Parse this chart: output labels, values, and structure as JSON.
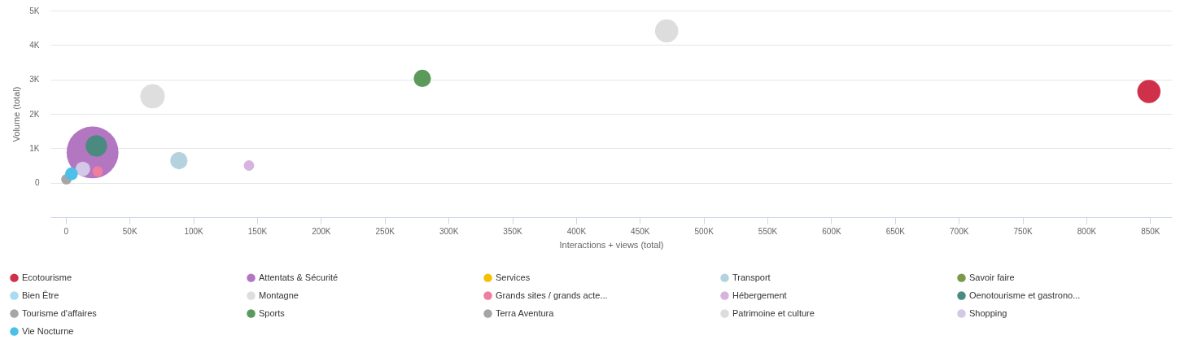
{
  "chart_data": {
    "type": "bubble",
    "xlabel": "Interactions + views (total)",
    "ylabel": "Volume (total)",
    "xlim": [
      -12000,
      867000
    ],
    "ylim": [
      -1000,
      5000
    ],
    "xticks": [
      0,
      {
        "value": 50000,
        "label": "50K"
      },
      {
        "value": 100000,
        "label": "100K"
      },
      {
        "value": 150000,
        "label": "150K"
      },
      {
        "value": 200000,
        "label": "200K"
      },
      {
        "value": 250000,
        "label": "250K"
      },
      {
        "value": 300000,
        "label": "300K"
      },
      {
        "value": 350000,
        "label": "350K"
      },
      {
        "value": 400000,
        "label": "400K"
      },
      {
        "value": 450000,
        "label": "450K"
      },
      {
        "value": 500000,
        "label": "500K"
      },
      {
        "value": 550000,
        "label": "550K"
      },
      {
        "value": 600000,
        "label": "600K"
      },
      {
        "value": 650000,
        "label": "650K"
      },
      {
        "value": 700000,
        "label": "700K"
      },
      {
        "value": 750000,
        "label": "750K"
      },
      {
        "value": 800000,
        "label": "800K"
      },
      {
        "value": 850000,
        "label": "850K"
      }
    ],
    "yticks": [
      0,
      {
        "value": 1000,
        "label": "1K"
      },
      {
        "value": 2000,
        "label": "2K"
      },
      {
        "value": 3000,
        "label": "3K"
      },
      {
        "value": 4000,
        "label": "4K"
      },
      {
        "value": 5000,
        "label": "5K"
      }
    ],
    "grid": "y",
    "legend": "bottom",
    "series": [
      {
        "name": "Ecotourisme",
        "color": "#d0314a",
        "x": [
          849000
        ],
        "values": [
          2650
        ],
        "sizes": [
          0.2
        ]
      },
      {
        "name": "Attentats & Sécurité",
        "color": "#b377c2",
        "x": [
          21000
        ],
        "values": [
          880
        ],
        "sizes": [
          1
        ]
      },
      {
        "name": "Services",
        "color": "#f5c000",
        "x": [
          null
        ],
        "values": [
          null
        ],
        "sizes": [
          null
        ]
      },
      {
        "name": "Transport",
        "color": "#b4d3df",
        "x": [
          88700
        ],
        "values": [
          640
        ],
        "sizes": [
          0.11
        ]
      },
      {
        "name": "Savoir faire",
        "color": "#7a9a4a",
        "x": [
          null
        ],
        "values": [
          null
        ],
        "sizes": [
          null
        ]
      },
      {
        "name": "Bien Être",
        "color": "#a8dcf0",
        "x": [
          null
        ],
        "values": [
          null
        ],
        "sizes": [
          null
        ]
      },
      {
        "name": "Montagne",
        "color": "#dedede",
        "x": [
          68000
        ],
        "values": [
          2510
        ],
        "sizes": [
          0.22
        ]
      },
      {
        "name": "Grands sites / grands acte...",
        "color": "#f07ca0",
        "x": [
          25000
        ],
        "values": [
          330
        ],
        "sizes": [
          0.04
        ]
      },
      {
        "name": "Hébergement",
        "color": "#d7b4de",
        "x": [
          143600
        ],
        "values": [
          500
        ],
        "sizes": [
          0.04
        ]
      },
      {
        "name": "Oenotourisme et gastrono...",
        "color": "#4a8a80",
        "x": [
          24000
        ],
        "values": [
          1070
        ],
        "sizes": [
          0.17
        ]
      },
      {
        "name": "Tourisme d'affaires",
        "color": "#a6a6a6",
        "x": [
          500
        ],
        "values": [
          100
        ],
        "sizes": [
          0.04
        ]
      },
      {
        "name": "Sports",
        "color": "#5c9a5c",
        "x": [
          279500
        ],
        "values": [
          3030
        ],
        "sizes": [
          0.11
        ]
      },
      {
        "name": "Terra Aventura",
        "color": "#a5a5a5",
        "x": [
          null
        ],
        "values": [
          null
        ],
        "sizes": [
          null
        ]
      },
      {
        "name": "Patrimoine et culture",
        "color": "#dddddd",
        "x": [
          471000
        ],
        "values": [
          4410
        ],
        "sizes": [
          0.2
        ]
      },
      {
        "name": "Shopping",
        "color": "#d3c8e6",
        "x": [
          13400
        ],
        "values": [
          400
        ],
        "sizes": [
          0.08
        ]
      },
      {
        "name": "Vie Nocturne",
        "color": "#4cc0e8",
        "x": [
          4500
        ],
        "values": [
          260
        ],
        "sizes": [
          0.06
        ]
      }
    ]
  }
}
